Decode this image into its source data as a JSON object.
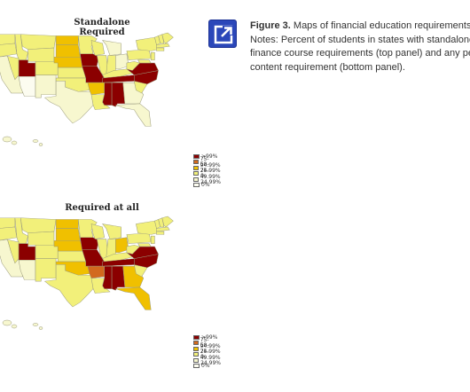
{
  "figure": {
    "label": "Figure 3.",
    "caption_first": " Maps of financial education requirements across",
    "caption_lines": [
      "Notes: Percent of students in states with standalone perso",
      "finance course requirements (top panel) and any personal",
      "content requirement (bottom panel)."
    ]
  },
  "expand_button": {
    "icon": "expand-icon"
  },
  "legend": {
    "items": [
      {
        "label": ">99%",
        "color": "#8b0000"
      },
      {
        "label": "75-94.99%",
        "color": "#d2691e"
      },
      {
        "label": "50-74.99%",
        "color": "#f0c000"
      },
      {
        "label": "25-49.99%",
        "color": "#f2f07a"
      },
      {
        "label": "0-24.99%",
        "color": "#f7f7cf"
      },
      {
        "label": "0%",
        "color": "#fcfcf0"
      }
    ]
  },
  "maps": [
    {
      "title": "Standalone Required",
      "states": {
        "UT": 0,
        "MO": 0,
        "IA": 0,
        "TN": 0,
        "AL": 0,
        "MS": 0,
        "VA": 0,
        "NC": 0,
        "ND": 2,
        "SD": 2,
        "NE": 2,
        "MN": 3,
        "KS": 3,
        "AR": 2,
        "IL": 3,
        "KY": 3,
        "SC": 3,
        "GA": 4,
        "FL": 4,
        "OH": 4,
        "AZ": 5,
        "NM": 4,
        "CA": 4,
        "ID": 3,
        "WI": 3,
        "MI": 4,
        "TX": 4,
        "OK": 3
      }
    },
    {
      "title": "Required at all",
      "states": {
        "UT": 0,
        "MO": 0,
        "IA": 0,
        "TN": 0,
        "AL": 0,
        "MS": 0,
        "VA": 0,
        "NC": 0,
        "AR": 1,
        "ND": 2,
        "SD": 2,
        "NE": 2,
        "OK": 2,
        "GA": 2,
        "FL": 2,
        "OH": 2,
        "SC": 3,
        "KS": 3,
        "TX": 3,
        "MI": 3,
        "IL": 3,
        "KY": 3,
        "MN": 3,
        "ID": 3,
        "AZ": 4,
        "NM": 3,
        "CA": 4,
        "WI": 3
      }
    }
  ]
}
